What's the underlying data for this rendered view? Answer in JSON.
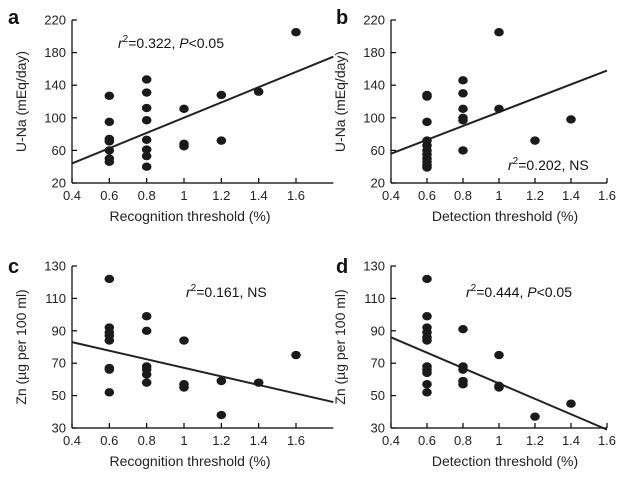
{
  "chart_data": [
    {
      "type": "scatter",
      "panel_letter": "a",
      "xlabel": "Recognition threshold (%)",
      "ylabel": "U-Na (mEq/day)",
      "xlim": [
        0.4,
        1.8
      ],
      "ylim": [
        20,
        220
      ],
      "xticks": [
        0.4,
        0.6,
        0.8,
        1,
        1.2,
        1.4,
        1.6
      ],
      "xtick_labels": [
        "0.4",
        "0.6",
        "0.8",
        "1",
        "1.2",
        "1.4",
        "1.6"
      ],
      "yticks": [
        20,
        60,
        100,
        140,
        180,
        220
      ],
      "ytick_labels": [
        "20",
        "60",
        "100",
        "140",
        "180",
        "220"
      ],
      "annotation": {
        "r2": "0.322",
        "p": "P<0.05"
      },
      "fit_line": {
        "x": [
          0.4,
          1.8
        ],
        "y": [
          44,
          175
        ]
      },
      "points": [
        {
          "x": 0.6,
          "y": 127
        },
        {
          "x": 0.6,
          "y": 95
        },
        {
          "x": 0.6,
          "y": 74
        },
        {
          "x": 0.6,
          "y": 71
        },
        {
          "x": 0.6,
          "y": 60
        },
        {
          "x": 0.6,
          "y": 50
        },
        {
          "x": 0.6,
          "y": 46
        },
        {
          "x": 0.8,
          "y": 147
        },
        {
          "x": 0.8,
          "y": 131
        },
        {
          "x": 0.8,
          "y": 112
        },
        {
          "x": 0.8,
          "y": 97
        },
        {
          "x": 0.8,
          "y": 73
        },
        {
          "x": 0.8,
          "y": 61
        },
        {
          "x": 0.8,
          "y": 53
        },
        {
          "x": 0.8,
          "y": 40
        },
        {
          "x": 1.0,
          "y": 111
        },
        {
          "x": 1.0,
          "y": 68
        },
        {
          "x": 1.0,
          "y": 65
        },
        {
          "x": 1.2,
          "y": 128
        },
        {
          "x": 1.2,
          "y": 72
        },
        {
          "x": 1.4,
          "y": 132
        },
        {
          "x": 1.6,
          "y": 205
        }
      ]
    },
    {
      "type": "scatter",
      "panel_letter": "b",
      "xlabel": "Detection threshold (%)",
      "ylabel": "U-Na (mEq/day)",
      "xlim": [
        0.4,
        1.6
      ],
      "ylim": [
        20,
        220
      ],
      "xticks": [
        0.4,
        0.6,
        0.8,
        1,
        1.2,
        1.4,
        1.6
      ],
      "xtick_labels": [
        "0.4",
        "0.6",
        "0.8",
        "1",
        "1.2",
        "1.4",
        "1.6"
      ],
      "yticks": [
        20,
        60,
        100,
        140,
        180,
        220
      ],
      "ytick_labels": [
        "20",
        "60",
        "100",
        "140",
        "180",
        "220"
      ],
      "annotation": {
        "r2": "0.202",
        "p": "NS"
      },
      "fit_line": {
        "x": [
          0.4,
          1.6
        ],
        "y": [
          56,
          158
        ]
      },
      "points": [
        {
          "x": 0.6,
          "y": 128
        },
        {
          "x": 0.6,
          "y": 126
        },
        {
          "x": 0.6,
          "y": 95
        },
        {
          "x": 0.6,
          "y": 72
        },
        {
          "x": 0.6,
          "y": 66
        },
        {
          "x": 0.6,
          "y": 60
        },
        {
          "x": 0.6,
          "y": 55
        },
        {
          "x": 0.6,
          "y": 50
        },
        {
          "x": 0.6,
          "y": 46
        },
        {
          "x": 0.6,
          "y": 42
        },
        {
          "x": 0.6,
          "y": 39
        },
        {
          "x": 0.8,
          "y": 146
        },
        {
          "x": 0.8,
          "y": 130
        },
        {
          "x": 0.8,
          "y": 111
        },
        {
          "x": 0.8,
          "y": 100
        },
        {
          "x": 0.8,
          "y": 97
        },
        {
          "x": 0.8,
          "y": 60
        },
        {
          "x": 1.0,
          "y": 205
        },
        {
          "x": 1.0,
          "y": 111
        },
        {
          "x": 1.2,
          "y": 72
        },
        {
          "x": 1.4,
          "y": 98
        }
      ]
    },
    {
      "type": "scatter",
      "panel_letter": "c",
      "xlabel": "Recognition threshold (%)",
      "ylabel": "Zn (µg per 100 ml)",
      "xlim": [
        0.4,
        1.8
      ],
      "ylim": [
        30,
        130
      ],
      "xticks": [
        0.4,
        0.6,
        0.8,
        1,
        1.2,
        1.4,
        1.6
      ],
      "xtick_labels": [
        "0.4",
        "0.6",
        "0.8",
        "1",
        "1.2",
        "1.4",
        "1.6"
      ],
      "yticks": [
        30,
        50,
        70,
        90,
        110,
        130
      ],
      "ytick_labels": [
        "30",
        "50",
        "70",
        "90",
        "110",
        "130"
      ],
      "annotation": {
        "r2": "0.161",
        "p": "NS"
      },
      "fit_line": {
        "x": [
          0.4,
          1.8
        ],
        "y": [
          83,
          46
        ]
      },
      "points": [
        {
          "x": 0.6,
          "y": 122
        },
        {
          "x": 0.6,
          "y": 92
        },
        {
          "x": 0.6,
          "y": 89
        },
        {
          "x": 0.6,
          "y": 87
        },
        {
          "x": 0.6,
          "y": 84
        },
        {
          "x": 0.6,
          "y": 67
        },
        {
          "x": 0.6,
          "y": 66
        },
        {
          "x": 0.6,
          "y": 52
        },
        {
          "x": 0.8,
          "y": 99
        },
        {
          "x": 0.8,
          "y": 90
        },
        {
          "x": 0.8,
          "y": 68
        },
        {
          "x": 0.8,
          "y": 66
        },
        {
          "x": 0.8,
          "y": 63
        },
        {
          "x": 0.8,
          "y": 58
        },
        {
          "x": 1.0,
          "y": 84
        },
        {
          "x": 1.0,
          "y": 57
        },
        {
          "x": 1.0,
          "y": 55
        },
        {
          "x": 1.2,
          "y": 59
        },
        {
          "x": 1.2,
          "y": 38
        },
        {
          "x": 1.4,
          "y": 58
        },
        {
          "x": 1.6,
          "y": 75
        }
      ]
    },
    {
      "type": "scatter",
      "panel_letter": "d",
      "xlabel": "Detection threshold (%)",
      "ylabel": "Zn (µg per 100 ml)",
      "xlim": [
        0.4,
        1.6
      ],
      "ylim": [
        30,
        130
      ],
      "xticks": [
        0.4,
        0.6,
        0.8,
        1,
        1.2,
        1.4,
        1.6
      ],
      "xtick_labels": [
        "0.4",
        "0.6",
        "0.8",
        "1",
        "1.2",
        "1.4",
        "1.6"
      ],
      "yticks": [
        30,
        50,
        70,
        90,
        110,
        130
      ],
      "ytick_labels": [
        "30",
        "50",
        "70",
        "90",
        "110",
        "130"
      ],
      "annotation": {
        "r2": "0.444",
        "p": "P<0.05"
      },
      "fit_line": {
        "x": [
          0.4,
          1.6
        ],
        "y": [
          86,
          29
        ]
      },
      "points": [
        {
          "x": 0.6,
          "y": 122
        },
        {
          "x": 0.6,
          "y": 99
        },
        {
          "x": 0.6,
          "y": 92
        },
        {
          "x": 0.6,
          "y": 89
        },
        {
          "x": 0.6,
          "y": 86
        },
        {
          "x": 0.6,
          "y": 84
        },
        {
          "x": 0.6,
          "y": 68
        },
        {
          "x": 0.6,
          "y": 66
        },
        {
          "x": 0.6,
          "y": 64
        },
        {
          "x": 0.6,
          "y": 57
        },
        {
          "x": 0.6,
          "y": 52
        },
        {
          "x": 0.8,
          "y": 91
        },
        {
          "x": 0.8,
          "y": 68
        },
        {
          "x": 0.8,
          "y": 66
        },
        {
          "x": 0.8,
          "y": 59
        },
        {
          "x": 0.8,
          "y": 57
        },
        {
          "x": 1.0,
          "y": 75
        },
        {
          "x": 1.0,
          "y": 56
        },
        {
          "x": 1.0,
          "y": 55
        },
        {
          "x": 1.2,
          "y": 37
        },
        {
          "x": 1.4,
          "y": 45
        }
      ]
    }
  ]
}
